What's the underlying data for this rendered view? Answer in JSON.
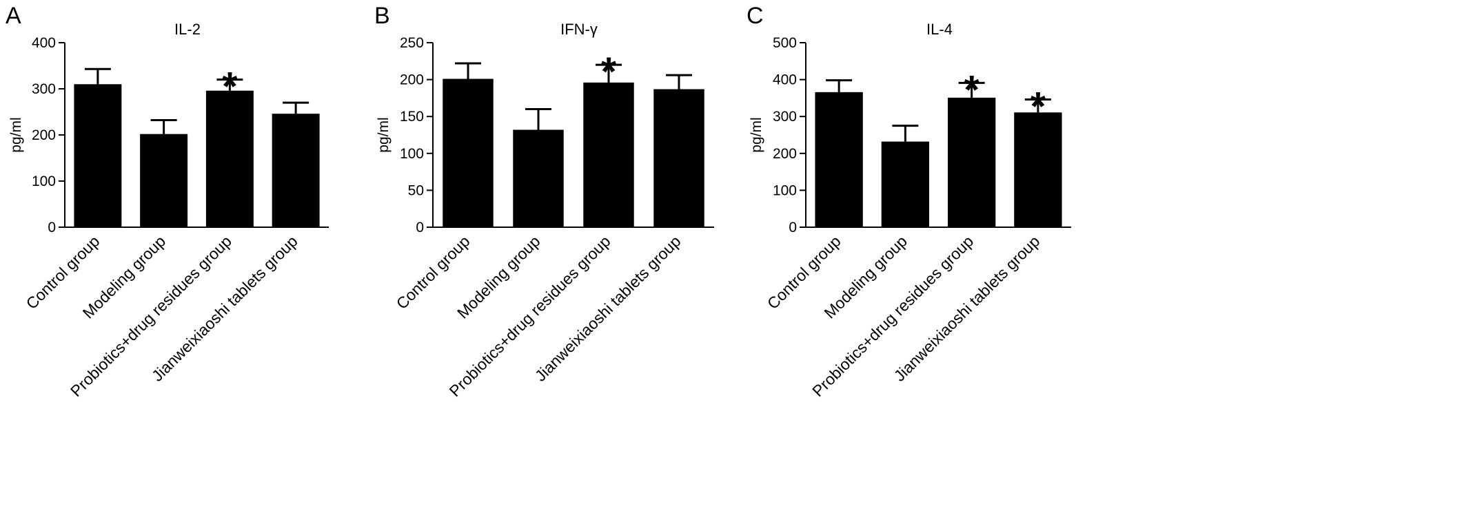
{
  "chart_data": [
    {
      "type": "bar",
      "panel": "A",
      "title": "IL-2",
      "ylabel": "pg/ml",
      "xlabel": "",
      "ylim": [
        0,
        400
      ],
      "yticks": [
        0,
        100,
        200,
        300,
        400
      ],
      "categories": [
        "Control group",
        "Modeling group",
        "Probiotics+drug residues group",
        "Jianweixiaoshi tablets group"
      ],
      "values": [
        310,
        202,
        296,
        246
      ],
      "errors": [
        33,
        30,
        24,
        24
      ],
      "significance": [
        "",
        "",
        "*",
        ""
      ]
    },
    {
      "type": "bar",
      "panel": "B",
      "title": "IFN-γ",
      "ylabel": "pg/ml",
      "xlabel": "",
      "ylim": [
        0,
        250
      ],
      "yticks": [
        0,
        50,
        100,
        150,
        200,
        250
      ],
      "categories": [
        "Control group",
        "Modeling group",
        "Probiotics+drug residues group",
        "Jianweixiaoshi tablets group"
      ],
      "values": [
        201,
        132,
        196,
        187
      ],
      "errors": [
        21,
        28,
        24,
        19
      ],
      "significance": [
        "",
        "",
        "*",
        ""
      ]
    },
    {
      "type": "bar",
      "panel": "C",
      "title": "IL-4",
      "ylabel": "pg/ml",
      "xlabel": "",
      "ylim": [
        0,
        500
      ],
      "yticks": [
        0,
        100,
        200,
        300,
        400,
        500
      ],
      "categories": [
        "Control group",
        "Modeling group",
        "Probiotics+drug residues group",
        "Jianweixiaoshi tablets group"
      ],
      "values": [
        366,
        232,
        351,
        311
      ],
      "errors": [
        32,
        43,
        40,
        35
      ],
      "significance": [
        "",
        "",
        "*",
        "*"
      ]
    }
  ],
  "style": {
    "bar_color": "#000000",
    "axis_color": "#000000",
    "background": "#ffffff"
  }
}
